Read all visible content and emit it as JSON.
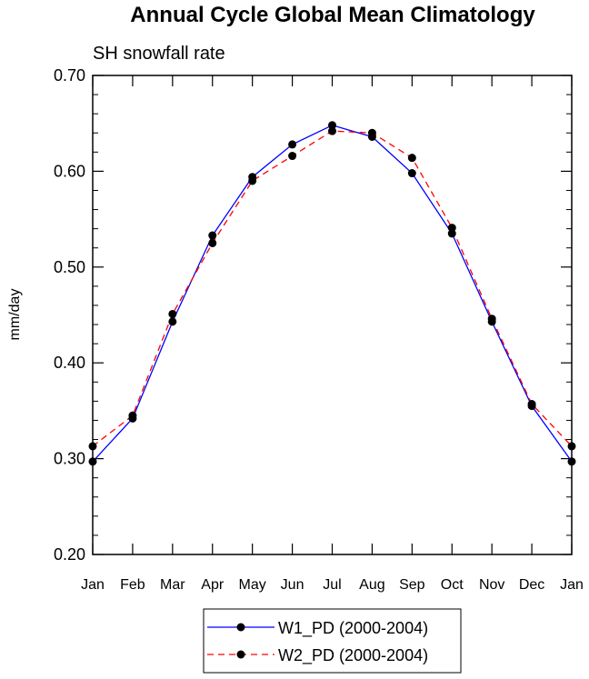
{
  "chart_data": {
    "type": "line",
    "title": "Annual Cycle Global Mean Climatology",
    "subtitle": "SH snowfall rate",
    "xlabel": "",
    "ylabel": "mm/day",
    "categories": [
      "Jan",
      "Feb",
      "Mar",
      "Apr",
      "May",
      "Jun",
      "Jul",
      "Aug",
      "Sep",
      "Oct",
      "Nov",
      "Dec",
      "Jan"
    ],
    "ylim": [
      0.2,
      0.7
    ],
    "yticks": [
      0.2,
      0.3,
      0.4,
      0.5,
      0.6,
      0.7
    ],
    "ytick_labels": [
      "0.20",
      "0.30",
      "0.40",
      "0.50",
      "0.60",
      "0.70"
    ],
    "series": [
      {
        "name": "W1_PD (2000-2004)",
        "color": "#0000ff",
        "dash": "solid",
        "marker": "circle",
        "marker_color": "#000000",
        "values": [
          0.297,
          0.342,
          0.443,
          0.533,
          0.594,
          0.628,
          0.648,
          0.636,
          0.598,
          0.535,
          0.443,
          0.355,
          0.297
        ]
      },
      {
        "name": "W2_PD (2000-2004)",
        "color": "#ff0000",
        "dash": "dashed",
        "marker": "circle",
        "marker_color": "#000000",
        "values": [
          0.313,
          0.345,
          0.451,
          0.525,
          0.59,
          0.616,
          0.642,
          0.64,
          0.614,
          0.541,
          0.446,
          0.357,
          0.313
        ]
      }
    ],
    "grid": false,
    "legend_position": "bottom-center"
  }
}
